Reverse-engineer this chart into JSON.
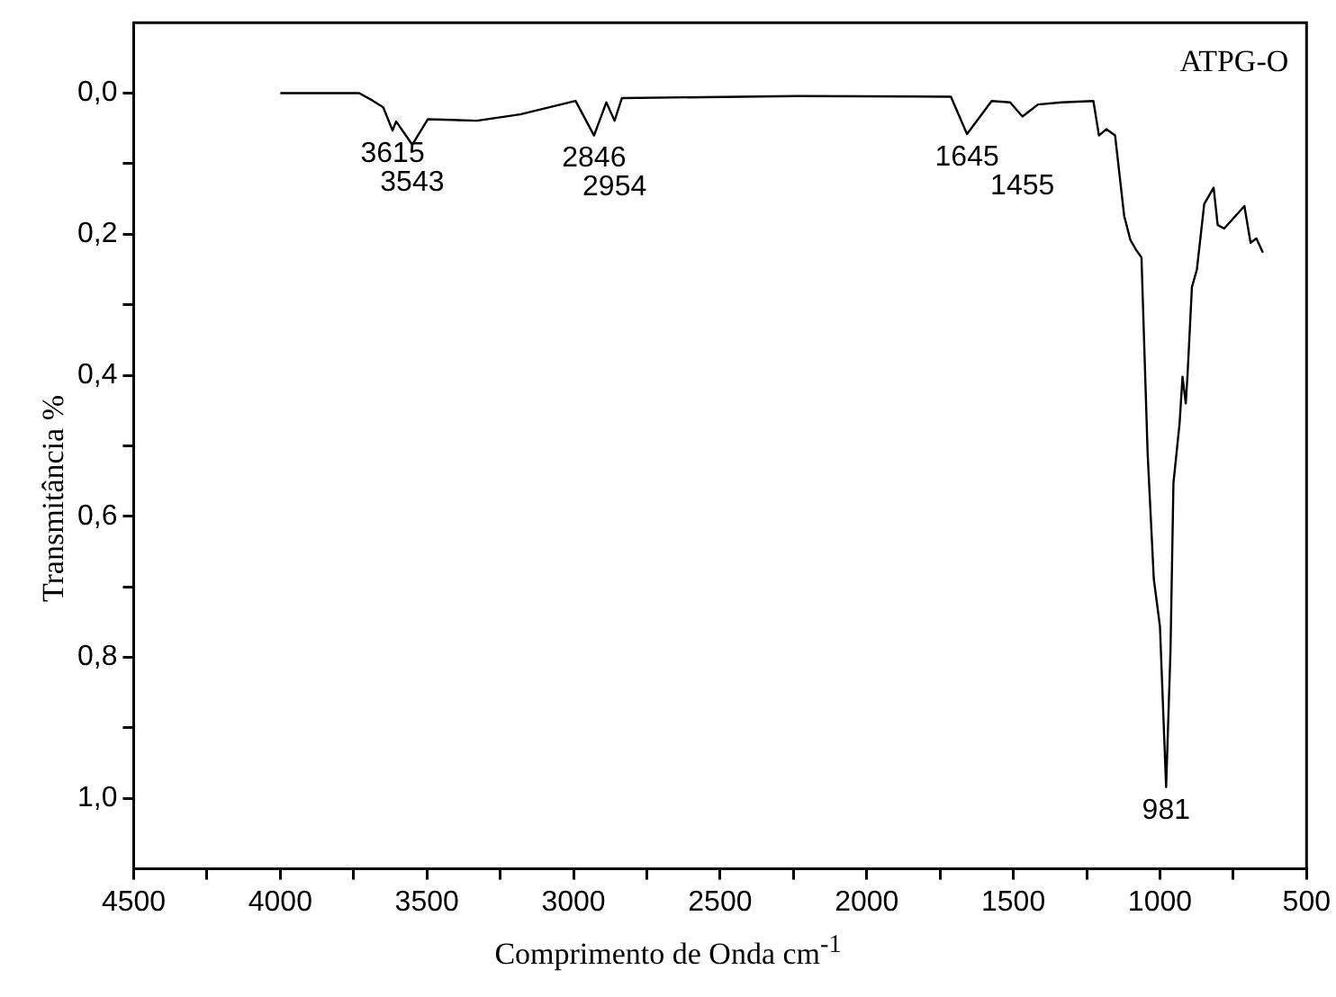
{
  "chart_data": {
    "type": "line",
    "xlabel": "Comprimento de Onda cm$^{-1}$",
    "ylabel": "Transmitância %",
    "xlim": [
      4500,
      500
    ],
    "xticks": [
      4500,
      {
        "value": 4250,
        "label": null
      },
      4000,
      {
        "value": 3750,
        "label": null
      },
      3500,
      {
        "value": 3250,
        "label": null
      },
      3000,
      {
        "value": 2750,
        "label": null
      },
      2500,
      {
        "value": 2250,
        "label": null
      },
      2000,
      {
        "value": 1750,
        "label": null
      },
      1500,
      {
        "value": 1250,
        "label": null
      },
      1000,
      {
        "value": 750,
        "label": null
      },
      500
    ],
    "ylim": [
      1.1,
      -0.1
    ],
    "yticks": [
      {
        "value": 0,
        "label": "0,0"
      },
      {
        "value": 0.1,
        "label": null
      },
      {
        "value": 0.2,
        "label": "0,2"
      },
      {
        "value": 0.3,
        "label": null
      },
      {
        "value": 0.4,
        "label": "0,4"
      },
      {
        "value": 0.5,
        "label": null
      },
      {
        "value": 0.6,
        "label": "0,6"
      },
      {
        "value": 0.7,
        "label": null
      },
      {
        "value": 0.8,
        "label": "0,8"
      },
      {
        "value": 0.9,
        "label": null
      },
      {
        "value": 1.0,
        "label": "1,0"
      }
    ],
    "x": [
      4000,
      3731,
      3687,
      3649,
      3617,
      3605,
      3550,
      3497,
      3329,
      3182,
      2993,
      2930,
      2888,
      2860,
      2835,
      2236,
      1713,
      1658,
      1574,
      1511,
      1469,
      1416,
      1335,
      1227,
      1208,
      1183,
      1153,
      1122,
      1101,
      1080,
      1063,
      1042,
      1021,
      1000,
      979,
      964,
      954,
      933,
      923,
      912,
      906,
      891,
      874,
      849,
      817,
      803,
      781,
      712,
      691,
      671,
      649
    ],
    "series": [
      {
        "color": "#000000",
        "values": [
          0.0,
          0.0,
          0.01,
          0.02,
          0.053,
          0.04,
          0.073,
          0.037,
          0.039,
          0.03,
          0.011,
          0.06,
          0.013,
          0.039,
          0.007,
          0.004,
          0.005,
          0.058,
          0.011,
          0.013,
          0.033,
          0.016,
          0.013,
          0.011,
          0.06,
          0.051,
          0.06,
          0.174,
          0.208,
          0.223,
          0.233,
          0.511,
          0.689,
          0.756,
          0.984,
          0.79,
          0.553,
          0.468,
          0.402,
          0.44,
          0.4,
          0.275,
          0.25,
          0.157,
          0.134,
          0.187,
          0.192,
          0.16,
          0.212,
          0.206,
          0.226
        ]
      }
    ],
    "marker": "none",
    "annotations": [
      "ATPG-O",
      {
        "text": "3615",
        "x": 3617,
        "y": 0.053
      },
      {
        "text": "3543",
        "x": 3550,
        "y": 0.073
      },
      {
        "text": "2846",
        "x": 2930,
        "y": 0.06
      },
      {
        "text": "2954",
        "x": 2860,
        "y": 0.039
      },
      {
        "text": "1645",
        "x": 1658,
        "y": 0.058
      },
      {
        "text": "1455",
        "x": 1469,
        "y": 0.033
      },
      {
        "text": "981",
        "x": 979,
        "y": 0.984
      }
    ]
  }
}
